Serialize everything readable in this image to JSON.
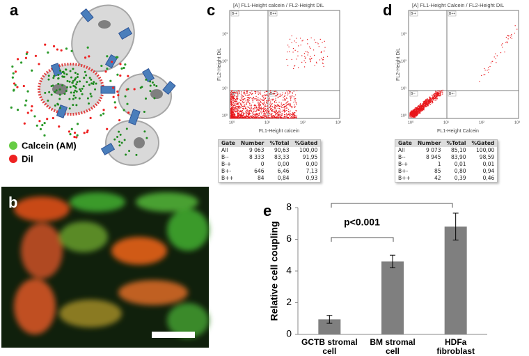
{
  "panels": {
    "a": {
      "label": "a",
      "legend": [
        "Calcein (AM)",
        "DiI"
      ]
    },
    "b": {
      "label": "b"
    },
    "c": {
      "label": "c",
      "plot_title": "[A] FL1-Height calcein / FL2-Height DiL",
      "x_label": "FL1-Height calcein",
      "y_label": "FL2-Height DiL",
      "ticks": [
        "10⁰",
        "10¹",
        "10²",
        "10³"
      ],
      "gates": [
        "B-+",
        "B++",
        "B--",
        "B+-"
      ],
      "table": [
        [
          "Gate",
          "Number",
          "%Total",
          "%Gated"
        ],
        [
          "All",
          "9 063",
          "90,63",
          "100,00"
        ],
        [
          "B--",
          "8 333",
          "83,33",
          "91,95"
        ],
        [
          "B-+",
          "0",
          "0,00",
          "0,00"
        ],
        [
          "B+-",
          "646",
          "6,46",
          "7,13"
        ],
        [
          "B++",
          "84",
          "0,84",
          "0,93"
        ]
      ]
    },
    "d": {
      "label": "d",
      "plot_title": "[A] FL1-Height Calcein / FL2-Height DiL",
      "x_label": "FL1-Height Calcein",
      "y_label": "FL2-Height DiL",
      "ticks": [
        "10⁰",
        "10¹",
        "10²",
        "10³"
      ],
      "gates": [
        "B-+",
        "B++",
        "B--",
        "B+-"
      ],
      "table": [
        [
          "Gate",
          "Number",
          "%Total",
          "%Gated"
        ],
        [
          "All",
          "9 073",
          "85,10",
          "100,00"
        ],
        [
          "B--",
          "8 945",
          "83,90",
          "98,59"
        ],
        [
          "B-+",
          "1",
          "0,01",
          "0,01"
        ],
        [
          "B+-",
          "85",
          "0,80",
          "0,94"
        ],
        [
          "B++",
          "42",
          "0,39",
          "0,46"
        ]
      ]
    }
  },
  "chart_data": {
    "type": "bar",
    "label": "e",
    "y_label": "Relative cell coupling",
    "categories": [
      "GCTB stromal\ncell",
      "BM stromal\ncell",
      "HDFa\nfibroblast"
    ],
    "values": [
      0.95,
      4.6,
      6.8
    ],
    "errors": [
      0.25,
      0.4,
      0.85
    ],
    "color": "#7f7f7f",
    "ylim": [
      0,
      8
    ],
    "yticks": [
      0,
      2,
      4,
      6,
      8
    ],
    "annotation": "p<0.001"
  }
}
